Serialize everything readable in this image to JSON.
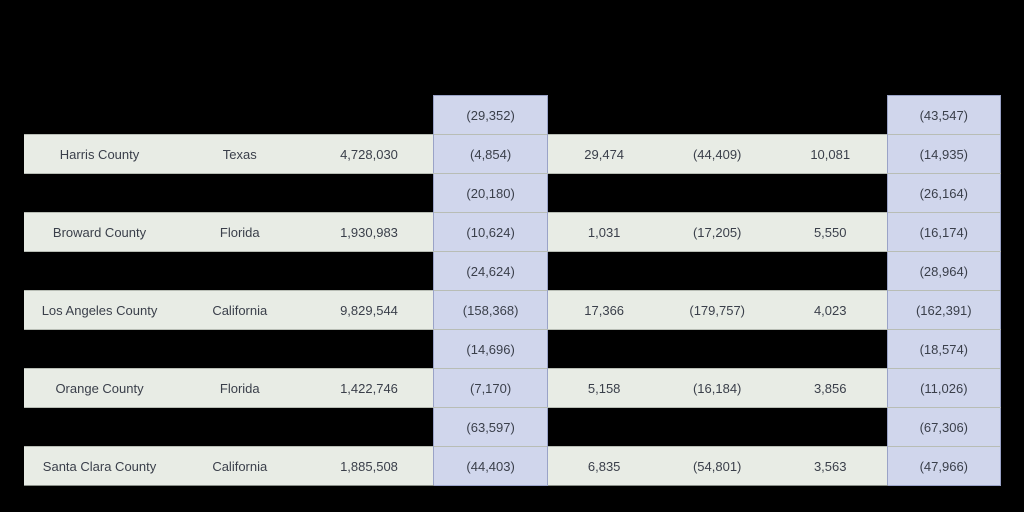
{
  "table": {
    "type": "table",
    "background_color": "#000000",
    "row_bg": "#e8ece5",
    "highlight_bg": "#d0d6ec",
    "text_color": "#3a3f4a",
    "font_size_pt": 10,
    "interleave": [
      {
        "col3": "(29,352)",
        "col7": "(43,547)"
      },
      {
        "col3": "(20,180)",
        "col7": "(26,164)"
      },
      {
        "col3": "(24,624)",
        "col7": "(28,964)"
      },
      {
        "col3": "(14,696)",
        "col7": "(18,574)"
      },
      {
        "col3": "(63,597)",
        "col7": "(67,306)"
      }
    ],
    "rows": [
      {
        "county": "Harris County",
        "state": "Texas",
        "pop": "4,728,030",
        "c3": "(4,854)",
        "c4": "29,474",
        "c5": "(44,409)",
        "c6": "10,081",
        "c7": "(14,935)"
      },
      {
        "county": "Broward County",
        "state": "Florida",
        "pop": "1,930,983",
        "c3": "(10,624)",
        "c4": "1,031",
        "c5": "(17,205)",
        "c6": "5,550",
        "c7": "(16,174)"
      },
      {
        "county": "Los Angeles County",
        "state": "California",
        "pop": "9,829,544",
        "c3": "(158,368)",
        "c4": "17,366",
        "c5": "(179,757)",
        "c6": "4,023",
        "c7": "(162,391)"
      },
      {
        "county": "Orange County",
        "state": "Florida",
        "pop": "1,422,746",
        "c3": "(7,170)",
        "c4": "5,158",
        "c5": "(16,184)",
        "c6": "3,856",
        "c7": "(11,026)"
      },
      {
        "county": "Santa Clara County",
        "state": "California",
        "pop": "1,885,508",
        "c3": "(44,403)",
        "c4": "6,835",
        "c5": "(54,801)",
        "c6": "3,563",
        "c7": "(47,966)"
      }
    ]
  }
}
